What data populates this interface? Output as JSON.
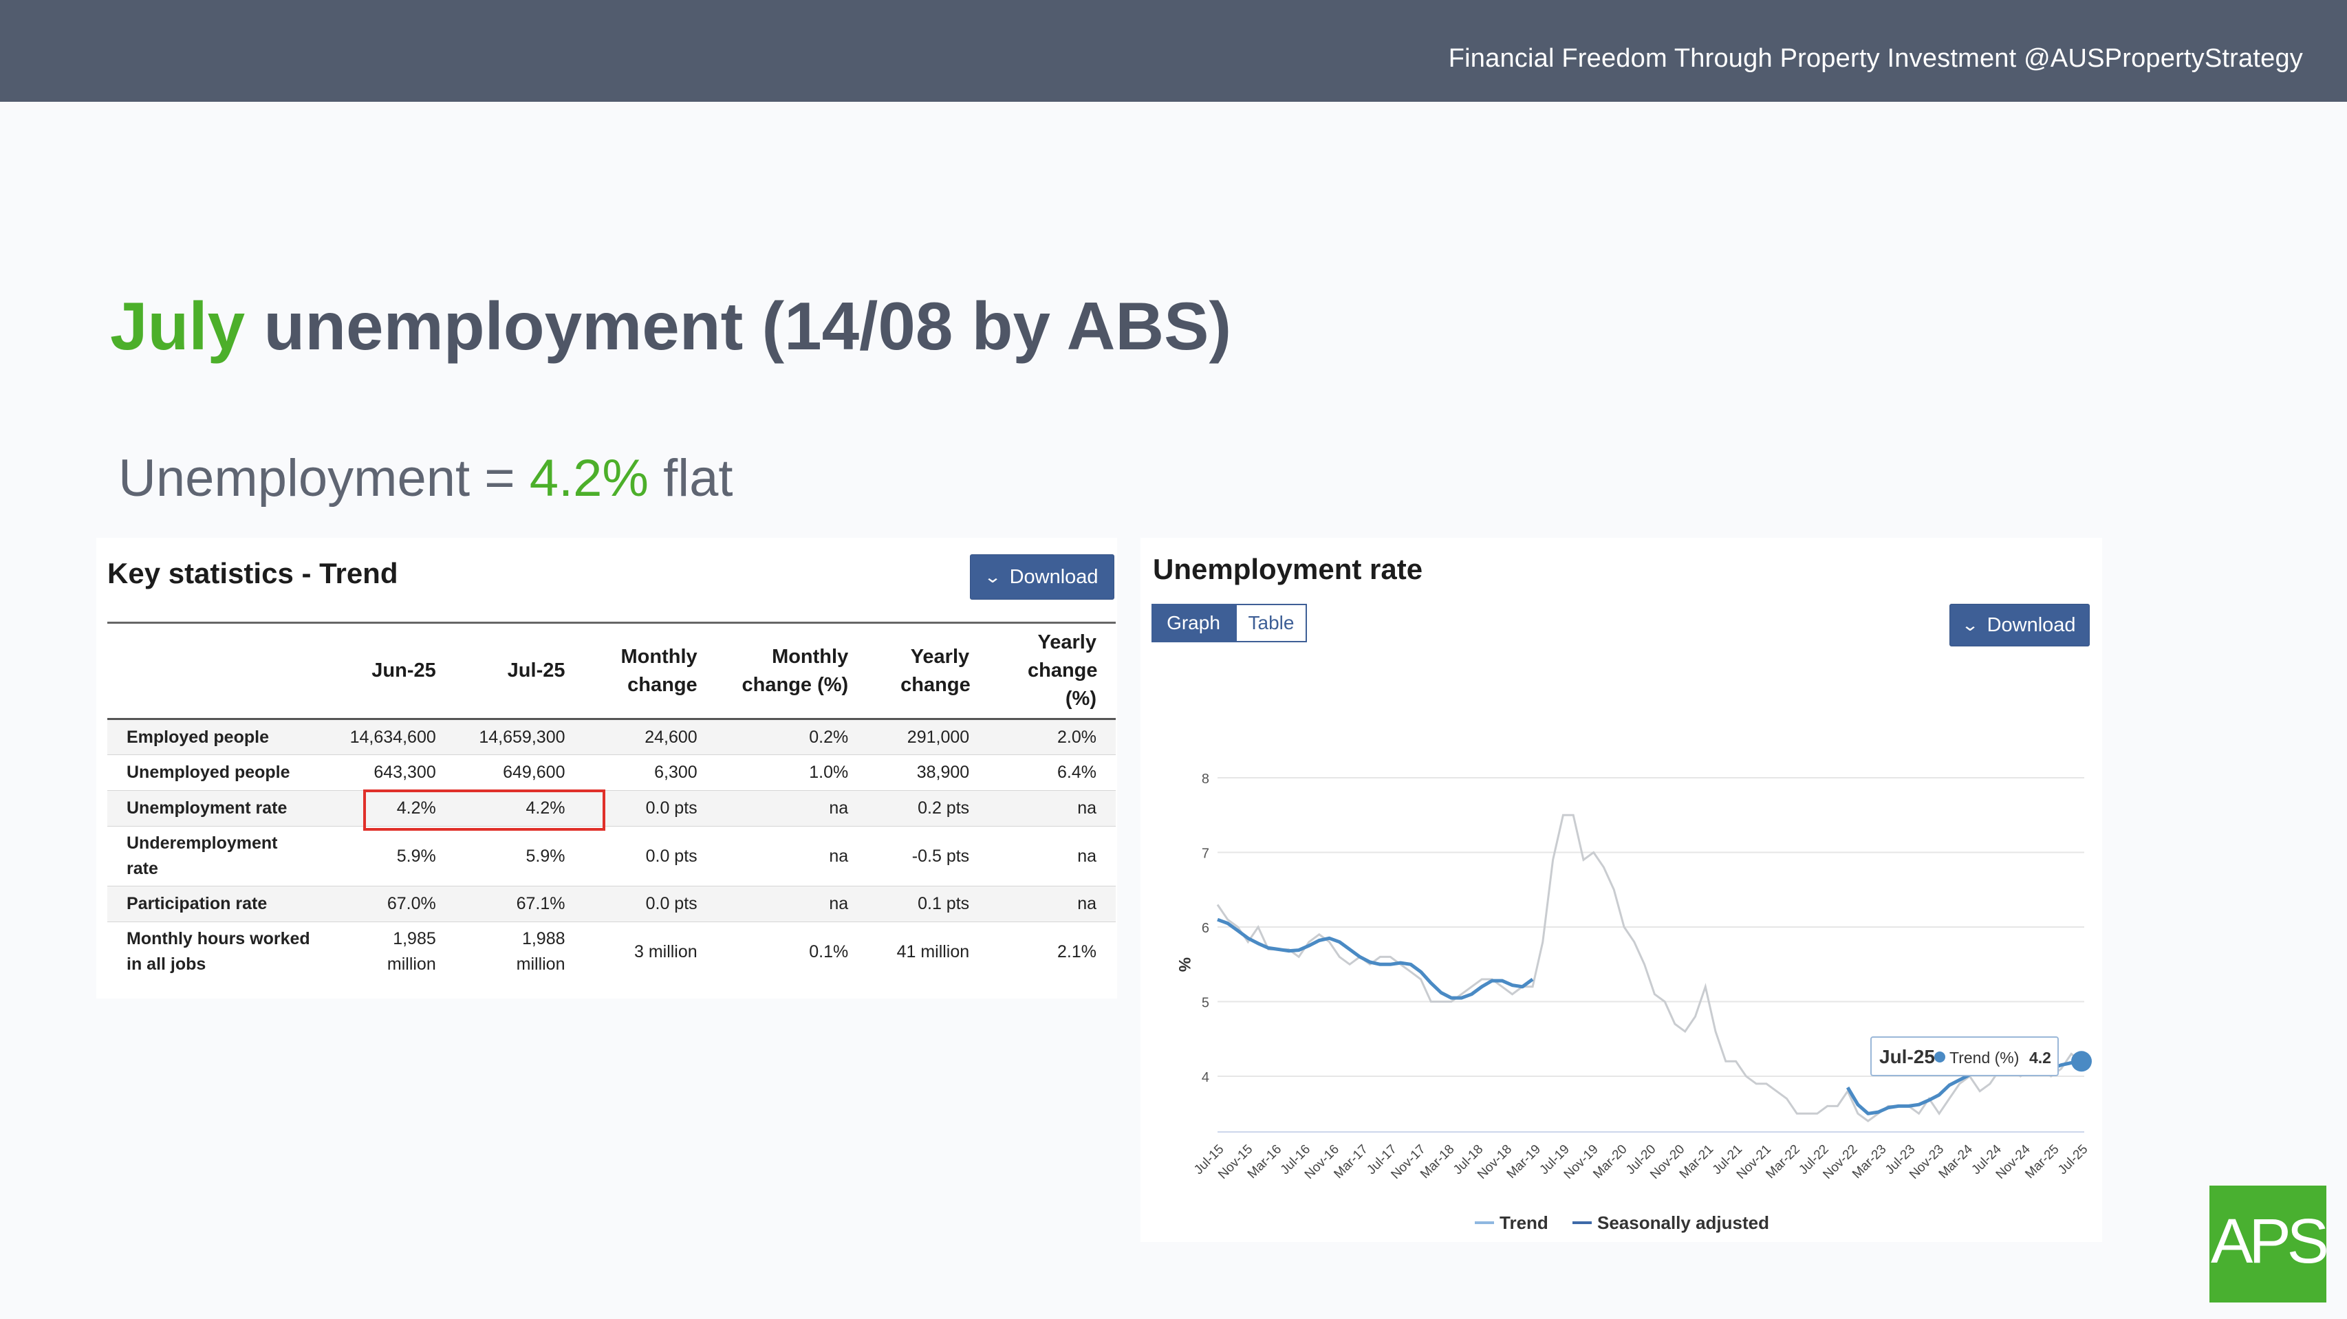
{
  "banner": {
    "text": "Financial Freedom Through Property Investment @AUSPropertyStrategy"
  },
  "title": {
    "highlight": "July",
    "rest": " unemployment (14/08 by ABS)"
  },
  "subtitle": {
    "prefix": "Unemployment = ",
    "value": "4.2%",
    "suffix": " flat"
  },
  "key_stats": {
    "title": "Key statistics - Trend",
    "download_label": "Download",
    "columns": [
      "",
      "Jun-25",
      "Jul-25",
      "Monthly change",
      "Monthly change (%)",
      "Yearly change",
      "Yearly change (%)"
    ],
    "rows": [
      {
        "label": "Employed people",
        "values": [
          "14,634,600",
          "14,659,300",
          "24,600",
          "0.2%",
          "291,000",
          "2.0%"
        ]
      },
      {
        "label": "Unemployed people",
        "values": [
          "643,300",
          "649,600",
          "6,300",
          "1.0%",
          "38,900",
          "6.4%"
        ]
      },
      {
        "label": "Unemployment rate",
        "values": [
          "4.2%",
          "4.2%",
          "0.0 pts",
          "na",
          "0.2 pts",
          "na"
        ]
      },
      {
        "label": "Underemployment rate",
        "values": [
          "5.9%",
          "5.9%",
          "0.0 pts",
          "na",
          "-0.5 pts",
          "na"
        ]
      },
      {
        "label": "Participation rate",
        "values": [
          "67.0%",
          "67.1%",
          "0.0 pts",
          "na",
          "0.1 pts",
          "na"
        ]
      },
      {
        "label": "Monthly hours worked in all jobs",
        "values": [
          "1,985 million",
          "1,988 million",
          "3 million",
          "0.1%",
          "41 million",
          "2.1%"
        ]
      }
    ]
  },
  "unemployment_chart": {
    "title": "Unemployment rate",
    "tabs": [
      "Graph",
      "Table"
    ],
    "download_label": "Download",
    "tooltip": {
      "date": "Jul-25",
      "series": "Trend (%)",
      "value": "4.2"
    }
  },
  "colors": {
    "accent_green": "#4caf2a",
    "banner": "#525c6e",
    "button_blue": "#3e5f96",
    "trend_line": "#4a8ac4",
    "sa_line": "#c9ccd0",
    "highlight_red": "#e0302a"
  },
  "logo": {
    "text": "APS"
  },
  "chart_data": {
    "type": "line",
    "ylabel": "%",
    "ylim": [
      3.6,
      8
    ],
    "yticks": [
      4,
      5,
      6,
      7,
      8
    ],
    "xtick_labels": [
      "Jul-15",
      "Nov-15",
      "Mar-16",
      "Jul-16",
      "Nov-16",
      "Mar-17",
      "Jul-17",
      "Nov-17",
      "Mar-18",
      "Jul-18",
      "Nov-18",
      "Mar-19",
      "Jul-19",
      "Nov-19",
      "Mar-20",
      "Jul-20",
      "Nov-20",
      "Mar-21",
      "Jul-21",
      "Nov-21",
      "Mar-22",
      "Jul-22",
      "Nov-22",
      "Mar-23",
      "Jul-23",
      "Nov-23",
      "Mar-24",
      "Jul-24",
      "Nov-24",
      "Mar-25",
      "Jul-25"
    ],
    "legend_position": "bottom",
    "grid": true,
    "series": [
      {
        "name": "Trend",
        "values": [
          6.1,
          6.05,
          5.95,
          5.85,
          5.78,
          5.72,
          5.7,
          5.68,
          5.69,
          5.75,
          5.82,
          5.85,
          5.8,
          5.7,
          5.6,
          5.53,
          5.5,
          5.5,
          5.52,
          5.5,
          5.4,
          5.25,
          5.12,
          5.05,
          5.05,
          5.1,
          5.2,
          5.28,
          5.28,
          5.22,
          5.2,
          5.3,
          null,
          null,
          null,
          null,
          null,
          null,
          null,
          null,
          null,
          null,
          null,
          null,
          null,
          null,
          null,
          null,
          null,
          null,
          null,
          null,
          null,
          null,
          null,
          null,
          null,
          null,
          null,
          null,
          null,
          null,
          3.85,
          3.62,
          3.5,
          3.52,
          3.58,
          3.6,
          3.6,
          3.62,
          3.68,
          3.75,
          3.88,
          3.95,
          4.02,
          4.05,
          4.08,
          4.1,
          4.12,
          4.1,
          4.08,
          4.07,
          4.1,
          4.15,
          4.18,
          4.2
        ]
      },
      {
        "name": "Seasonally adjusted",
        "values": [
          6.3,
          6.1,
          6.0,
          5.8,
          6.0,
          5.7,
          5.7,
          5.7,
          5.6,
          5.8,
          5.9,
          5.8,
          5.6,
          5.5,
          5.6,
          5.5,
          5.6,
          5.6,
          5.5,
          5.4,
          5.3,
          5.0,
          5.0,
          5.0,
          5.1,
          5.2,
          5.3,
          5.3,
          5.2,
          5.1,
          5.2,
          5.2,
          5.8,
          6.9,
          7.5,
          7.5,
          6.9,
          7.0,
          6.8,
          6.5,
          6.0,
          5.8,
          5.5,
          5.1,
          5.0,
          4.7,
          4.6,
          4.8,
          5.2,
          4.6,
          4.2,
          4.2,
          4.0,
          3.9,
          3.9,
          3.8,
          3.7,
          3.5,
          3.5,
          3.5,
          3.6,
          3.6,
          3.8,
          3.5,
          3.4,
          3.5,
          3.6,
          3.6,
          3.6,
          3.5,
          3.7,
          3.5,
          3.7,
          3.9,
          4.0,
          3.8,
          3.9,
          4.1,
          4.1,
          4.0,
          4.1,
          4.1,
          4.0,
          4.1,
          4.3,
          4.2
        ]
      }
    ]
  }
}
